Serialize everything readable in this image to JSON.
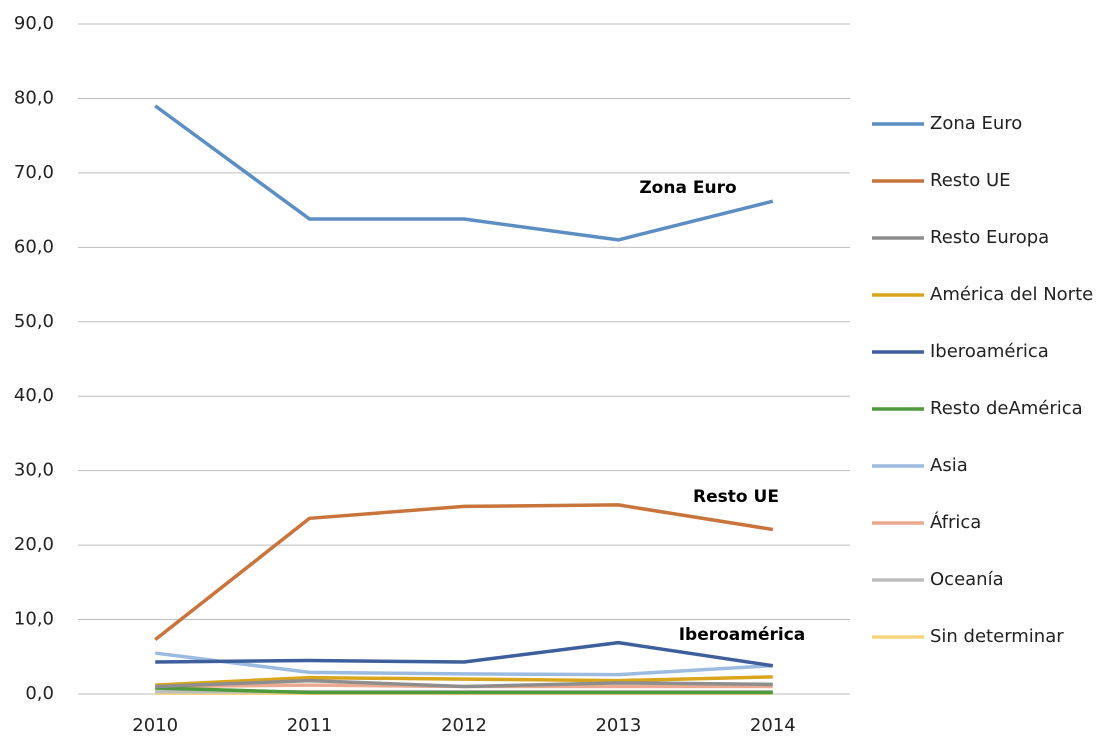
{
  "chart_data": {
    "type": "line",
    "categories": [
      "2010",
      "2011",
      "2012",
      "2013",
      "2014"
    ],
    "series": [
      {
        "name": "Zona Euro",
        "color": "#5b8ec2",
        "values": [
          79.0,
          63.8,
          63.8,
          61.0,
          66.2
        ]
      },
      {
        "name": "Resto UE",
        "color": "#c9743b",
        "values": [
          7.3,
          23.6,
          25.2,
          25.4,
          22.1
        ]
      },
      {
        "name": "Resto Europa",
        "color": "#8e8e8e",
        "values": [
          1.0,
          1.8,
          1.0,
          1.5,
          1.3
        ]
      },
      {
        "name": "América del Norte",
        "color": "#d9a51c",
        "values": [
          1.2,
          2.2,
          2.0,
          1.8,
          2.3
        ]
      },
      {
        "name": "Iberoamérica",
        "color": "#3e5f9b",
        "values": [
          4.3,
          4.5,
          4.3,
          6.9,
          3.8
        ]
      },
      {
        "name": "Resto deAmérica",
        "color": "#4f9a3c",
        "values": [
          0.8,
          0.2,
          0.2,
          0.2,
          0.2
        ]
      },
      {
        "name": "Asia",
        "color": "#9cbbe0",
        "values": [
          5.5,
          2.9,
          2.7,
          2.6,
          3.8
        ]
      },
      {
        "name": "África",
        "color": "#eaa990",
        "values": [
          1.0,
          1.2,
          1.0,
          1.0,
          1.0
        ]
      },
      {
        "name": "Oceanía",
        "color": "#bdbdbd",
        "values": [
          0.3,
          0.3,
          0.3,
          0.3,
          0.3
        ]
      },
      {
        "name": "Sin determinar",
        "color": "#f6d47e",
        "values": [
          0.1,
          0.1,
          0.1,
          0.1,
          0.1
        ]
      }
    ],
    "annotations": [
      "Zona Euro",
      "Resto UE",
      "Iberoamérica"
    ],
    "ylim": [
      0,
      90
    ],
    "yticks": [
      {
        "value": 0,
        "label": "0,0"
      },
      {
        "value": 10,
        "label": "10,0"
      },
      {
        "value": 20,
        "label": "20,0"
      },
      {
        "value": 30,
        "label": "30,0"
      },
      {
        "value": 40,
        "label": "40,0"
      },
      {
        "value": 50,
        "label": "50,0"
      },
      {
        "value": 60,
        "label": "60,0"
      },
      {
        "value": 70,
        "label": "70,0"
      },
      {
        "value": 80,
        "label": "80,0"
      },
      {
        "value": 90,
        "label": "90,0"
      }
    ],
    "grid": true,
    "legend": "right"
  }
}
